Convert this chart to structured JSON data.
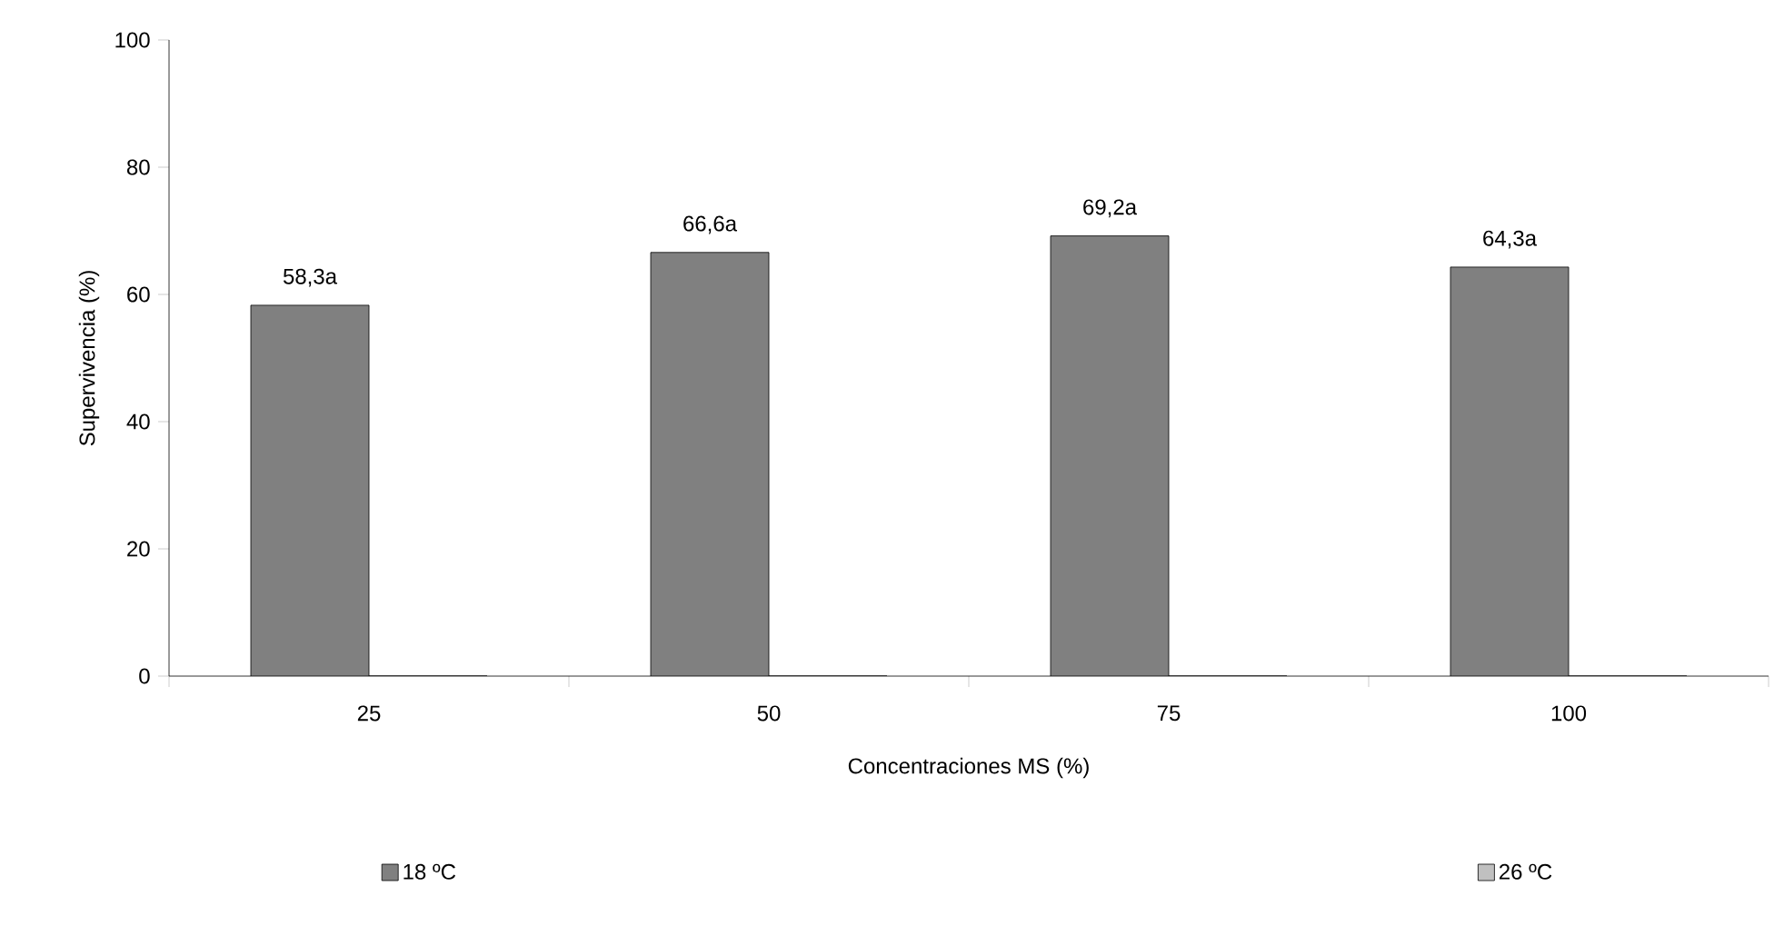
{
  "chart_data": {
    "type": "bar",
    "xlabel": "Concentraciones MS (%)",
    "ylabel": "Supervivencia (%)",
    "categories": [
      "25",
      "50",
      "75",
      "100"
    ],
    "series": [
      {
        "name": "18 ºC",
        "color": "#808080",
        "values": [
          58.3,
          66.6,
          69.2,
          64.3
        ],
        "value_labels": [
          "58,3a",
          "66,6a",
          "69,2a",
          "64,3a"
        ]
      },
      {
        "name": "26 ºC",
        "color": "#c0c0c0",
        "values": [
          0,
          0,
          0,
          0
        ]
      }
    ],
    "ylim": [
      0,
      100
    ],
    "yticks": [
      0,
      20,
      40,
      60,
      80,
      100
    ],
    "grid": false,
    "legend": "bottom"
  }
}
